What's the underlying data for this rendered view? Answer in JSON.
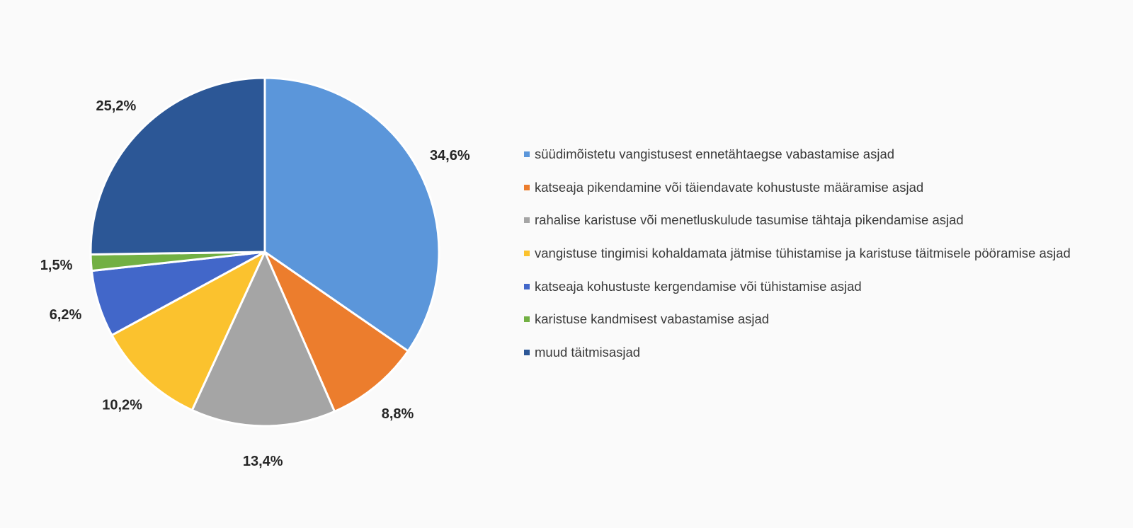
{
  "chart_data": {
    "type": "pie",
    "title": "",
    "legend_position": "right",
    "start_angle_deg": 0,
    "direction": "clockwise",
    "slices": [
      {
        "label": "süüdimõistetu vangistusest ennetähtaegse vabastamise asjad",
        "value": 34.6,
        "display": "34,6%",
        "color": "#5b96da"
      },
      {
        "label": "katseaja pikendamine või täiendavate kohustuste määramise asjad",
        "value": 8.8,
        "display": "8,8%",
        "color": "#ec7d2d"
      },
      {
        "label": "rahalise karistuse või menetluskulude tasumise tähtaja pikendamise asjad",
        "value": 13.4,
        "display": "13,4%",
        "color": "#a5a5a5"
      },
      {
        "label": "vangistuse tingimisi kohaldamata jätmise tühistamise ja karistuse täitmisele pööramise asjad",
        "value": 10.2,
        "display": "10,2%",
        "color": "#fbc22e"
      },
      {
        "label": "katseaja kohustuste kergendamise või tühistamise asjad",
        "value": 6.2,
        "display": "6,2%",
        "color": "#4267c9"
      },
      {
        "label": "karistuse kandmisest vabastamise asjad",
        "value": 1.5,
        "display": "1,5%",
        "color": "#72b043"
      },
      {
        "label": "muud täitmisasjad",
        "value": 25.2,
        "display": "25,2%",
        "color": "#2c5796"
      }
    ]
  }
}
